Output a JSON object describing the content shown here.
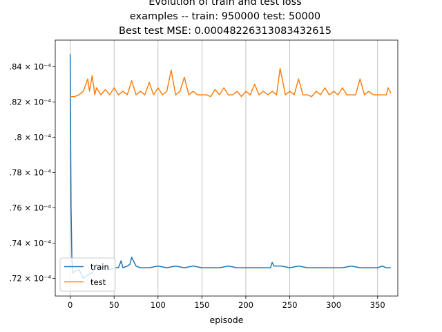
{
  "chart_data": {
    "type": "line",
    "title": "Evolution of train and test loss",
    "subtitle": "examples -- train: 950000 test: 50000",
    "subtitle2": "Best test MSE: 0.00048226313083432615",
    "xlabel": "episode",
    "ylabel": "",
    "xlim": [
      -17,
      373
    ],
    "ylim": [
      0.000471,
      0.0004855
    ],
    "x_ticks": [
      0,
      50,
      100,
      150,
      200,
      250,
      300,
      350
    ],
    "x_tick_labels": [
      "0",
      "50",
      "100",
      "150",
      "200",
      "250",
      "300",
      "350"
    ],
    "y_ticks": [
      0.000472,
      0.000474,
      0.000476,
      0.000478,
      0.00048,
      0.000482,
      0.000484
    ],
    "y_tick_labels": [
      ".72 × 10⁻⁴",
      ".74 × 10⁻⁴",
      ".76 × 10⁻⁴",
      ".78 × 10⁻⁴",
      ".8 × 10⁻⁴",
      ".82 × 10⁻⁴",
      ".84 × 10⁻⁴"
    ],
    "grid": "x-only",
    "legend_position": "lower-left",
    "series": [
      {
        "name": "train",
        "color": "#1f77b4",
        "x": [
          0,
          1,
          2,
          3,
          5,
          10,
          15,
          20,
          25,
          30,
          35,
          40,
          45,
          50,
          55,
          58,
          60,
          65,
          68,
          70,
          75,
          80,
          90,
          100,
          110,
          120,
          130,
          140,
          150,
          160,
          170,
          180,
          190,
          200,
          210,
          220,
          228,
          230,
          232,
          240,
          250,
          260,
          270,
          280,
          290,
          300,
          310,
          320,
          330,
          340,
          350,
          355,
          360,
          365
        ],
        "values": [
          0.0004847,
          0.000476,
          0.000473,
          0.0004723,
          0.0004724,
          0.0004725,
          0.000472,
          0.0004722,
          0.0004723,
          0.0004728,
          0.0004726,
          0.0004727,
          0.0004725,
          0.0004726,
          0.0004726,
          0.000473,
          0.0004726,
          0.0004727,
          0.0004728,
          0.0004732,
          0.0004727,
          0.0004726,
          0.0004726,
          0.0004727,
          0.0004726,
          0.0004727,
          0.0004726,
          0.0004727,
          0.0004726,
          0.0004726,
          0.0004726,
          0.0004727,
          0.0004726,
          0.0004726,
          0.0004726,
          0.0004726,
          0.0004726,
          0.0004729,
          0.0004727,
          0.0004727,
          0.0004726,
          0.0004727,
          0.0004726,
          0.0004726,
          0.0004726,
          0.0004726,
          0.0004726,
          0.0004727,
          0.0004726,
          0.0004726,
          0.0004726,
          0.0004727,
          0.0004726,
          0.0004726
        ]
      },
      {
        "name": "test",
        "color": "#ff7f0e",
        "x": [
          0,
          5,
          10,
          15,
          20,
          22,
          25,
          28,
          30,
          35,
          40,
          45,
          50,
          55,
          60,
          65,
          70,
          75,
          80,
          85,
          90,
          95,
          100,
          105,
          110,
          115,
          120,
          125,
          130,
          135,
          140,
          145,
          150,
          155,
          160,
          165,
          170,
          175,
          180,
          185,
          190,
          195,
          200,
          205,
          210,
          215,
          220,
          225,
          230,
          235,
          239,
          245,
          250,
          255,
          260,
          265,
          270,
          275,
          280,
          285,
          290,
          295,
          300,
          305,
          310,
          315,
          320,
          325,
          330,
          335,
          340,
          345,
          350,
          355,
          360,
          362,
          365
        ],
        "values": [
          0.0004823,
          0.0004823,
          0.0004824,
          0.0004826,
          0.0004833,
          0.0004826,
          0.0004835,
          0.0004824,
          0.0004828,
          0.0004824,
          0.0004827,
          0.0004824,
          0.0004828,
          0.0004824,
          0.0004826,
          0.0004824,
          0.0004832,
          0.0004824,
          0.0004826,
          0.0004824,
          0.0004831,
          0.0004824,
          0.0004828,
          0.0004824,
          0.0004826,
          0.0004838,
          0.0004824,
          0.0004826,
          0.0004834,
          0.0004824,
          0.0004826,
          0.0004824,
          0.0004824,
          0.0004824,
          0.0004823,
          0.0004827,
          0.0004824,
          0.0004828,
          0.0004824,
          0.0004824,
          0.0004826,
          0.0004823,
          0.0004826,
          0.0004824,
          0.000483,
          0.0004824,
          0.0004826,
          0.0004824,
          0.0004826,
          0.0004824,
          0.0004839,
          0.0004824,
          0.0004826,
          0.0004824,
          0.0004833,
          0.0004824,
          0.0004824,
          0.0004823,
          0.0004826,
          0.0004824,
          0.0004828,
          0.0004824,
          0.0004826,
          0.0004824,
          0.0004828,
          0.0004824,
          0.0004824,
          0.0004824,
          0.0004833,
          0.0004824,
          0.0004826,
          0.0004824,
          0.0004824,
          0.0004824,
          0.0004824,
          0.0004828,
          0.0004825
        ]
      }
    ]
  }
}
